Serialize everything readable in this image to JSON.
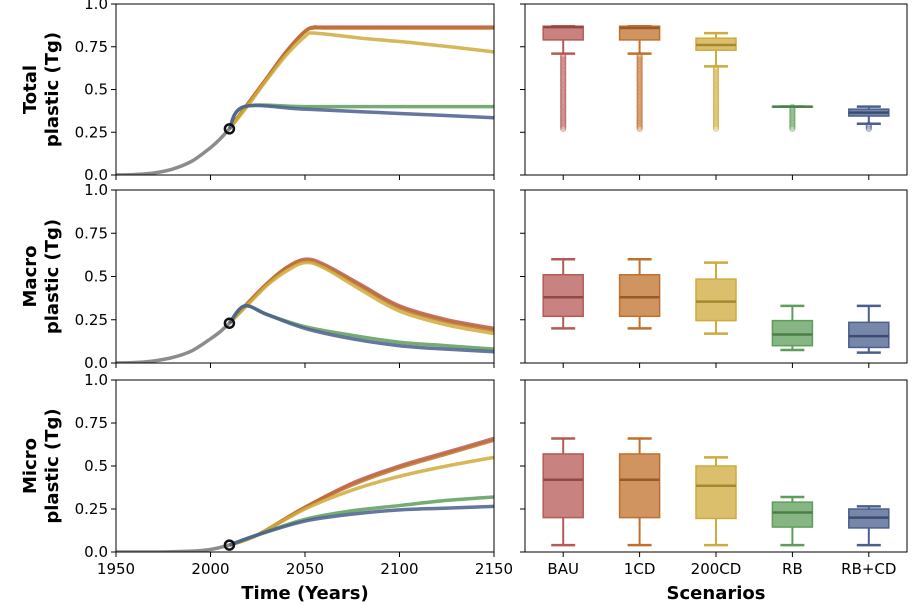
{
  "colors": {
    "historical": "#808080",
    "BAU": "#b65a55",
    "1CD": "#c0702c",
    "200CD": "#cfaa3c",
    "RB": "#5e9e5a",
    "RB+CD": "#4a5f8e"
  },
  "chart_data": [
    {
      "type": "line",
      "row": "total",
      "ylabel_lines": [
        "Total",
        "plastic (Tg)"
      ],
      "xlim": [
        1950,
        2150
      ],
      "ylim": [
        0,
        1.0
      ],
      "xticks": [
        "1950",
        "2000",
        "2050",
        "2100",
        "2150"
      ],
      "yticks": [
        "0.0",
        "0.25",
        "0.5",
        "0.75",
        "1.0"
      ],
      "xlabel": "",
      "marker": {
        "x": 2010,
        "y": 0.27
      },
      "historical": {
        "x": [
          1950,
          1960,
          1970,
          1980,
          1990,
          2000,
          2005,
          2010
        ],
        "y": [
          0.0,
          0.003,
          0.012,
          0.035,
          0.08,
          0.16,
          0.21,
          0.27
        ]
      },
      "series": [
        {
          "key": "BAU",
          "x": [
            2010,
            2020,
            2030,
            2040,
            2050,
            2055,
            2060,
            2100,
            2150
          ],
          "y": [
            0.27,
            0.42,
            0.57,
            0.72,
            0.84,
            0.865,
            0.865,
            0.865,
            0.865
          ]
        },
        {
          "key": "1CD",
          "x": [
            2010,
            2020,
            2030,
            2040,
            2050,
            2055,
            2060,
            2100,
            2150
          ],
          "y": [
            0.27,
            0.42,
            0.57,
            0.72,
            0.84,
            0.86,
            0.86,
            0.86,
            0.86
          ]
        },
        {
          "key": "200CD",
          "x": [
            2010,
            2020,
            2030,
            2040,
            2050,
            2055,
            2080,
            2110,
            2150
          ],
          "y": [
            0.27,
            0.41,
            0.56,
            0.7,
            0.81,
            0.83,
            0.8,
            0.77,
            0.72
          ]
        },
        {
          "key": "RB",
          "x": [
            2010,
            2018,
            2050,
            2100,
            2150
          ],
          "y": [
            0.27,
            0.4,
            0.4,
            0.4,
            0.4
          ]
        },
        {
          "key": "RB+CD",
          "x": [
            2010,
            2018,
            2050,
            2100,
            2150
          ],
          "y": [
            0.27,
            0.4,
            0.385,
            0.36,
            0.335
          ]
        }
      ]
    },
    {
      "type": "line",
      "row": "macro",
      "ylabel_lines": [
        "Macro",
        "plastic (Tg)"
      ],
      "xlim": [
        1950,
        2150
      ],
      "ylim": [
        0,
        1.0
      ],
      "xticks": [
        "1950",
        "2000",
        "2050",
        "2100",
        "2150"
      ],
      "yticks": [
        "0.0",
        "0.25",
        "0.5",
        "0.75",
        "1.0"
      ],
      "xlabel": "",
      "marker": {
        "x": 2010,
        "y": 0.23
      },
      "historical": {
        "x": [
          1950,
          1960,
          1970,
          1980,
          1990,
          2000,
          2005,
          2010
        ],
        "y": [
          0.0,
          0.003,
          0.012,
          0.032,
          0.07,
          0.14,
          0.18,
          0.23
        ]
      },
      "series": [
        {
          "key": "BAU",
          "x": [
            2010,
            2020,
            2030,
            2040,
            2050,
            2060,
            2080,
            2100,
            2125,
            2150
          ],
          "y": [
            0.23,
            0.35,
            0.46,
            0.55,
            0.6,
            0.57,
            0.45,
            0.33,
            0.25,
            0.2
          ]
        },
        {
          "key": "1CD",
          "x": [
            2010,
            2020,
            2030,
            2040,
            2050,
            2060,
            2080,
            2100,
            2125,
            2150
          ],
          "y": [
            0.23,
            0.35,
            0.46,
            0.55,
            0.59,
            0.56,
            0.44,
            0.32,
            0.24,
            0.19
          ]
        },
        {
          "key": "200CD",
          "x": [
            2010,
            2020,
            2030,
            2040,
            2050,
            2060,
            2080,
            2100,
            2125,
            2150
          ],
          "y": [
            0.23,
            0.34,
            0.45,
            0.53,
            0.58,
            0.55,
            0.42,
            0.3,
            0.22,
            0.17
          ]
        },
        {
          "key": "RB",
          "x": [
            2010,
            2018,
            2030,
            2050,
            2075,
            2100,
            2125,
            2150
          ],
          "y": [
            0.23,
            0.33,
            0.28,
            0.21,
            0.16,
            0.12,
            0.1,
            0.08
          ]
        },
        {
          "key": "RB+CD",
          "x": [
            2010,
            2018,
            2030,
            2050,
            2075,
            2100,
            2125,
            2150
          ],
          "y": [
            0.23,
            0.33,
            0.28,
            0.2,
            0.14,
            0.1,
            0.08,
            0.065
          ]
        }
      ]
    },
    {
      "type": "line",
      "row": "micro",
      "ylabel_lines": [
        "Micro",
        "plastic (Tg)"
      ],
      "xlim": [
        1950,
        2150
      ],
      "ylim": [
        0,
        1.0
      ],
      "xticks": [
        "1950",
        "2000",
        "2050",
        "2100",
        "2150"
      ],
      "yticks": [
        "0.0",
        "0.25",
        "0.5",
        "0.75",
        "1.0"
      ],
      "xlabel": "Time (Years)",
      "marker": {
        "x": 2010,
        "y": 0.04
      },
      "historical": {
        "x": [
          1950,
          1970,
          1990,
          2000,
          2010
        ],
        "y": [
          0.0,
          0.0,
          0.005,
          0.015,
          0.04
        ]
      },
      "series": [
        {
          "key": "BAU",
          "x": [
            2010,
            2025,
            2050,
            2075,
            2100,
            2125,
            2150
          ],
          "y": [
            0.04,
            0.1,
            0.26,
            0.4,
            0.5,
            0.58,
            0.66
          ]
        },
        {
          "key": "1CD",
          "x": [
            2010,
            2025,
            2050,
            2075,
            2100,
            2125,
            2150
          ],
          "y": [
            0.04,
            0.1,
            0.26,
            0.39,
            0.49,
            0.57,
            0.65
          ]
        },
        {
          "key": "200CD",
          "x": [
            2010,
            2025,
            2050,
            2075,
            2100,
            2125,
            2150
          ],
          "y": [
            0.04,
            0.1,
            0.25,
            0.36,
            0.44,
            0.5,
            0.55
          ]
        },
        {
          "key": "RB",
          "x": [
            2010,
            2025,
            2050,
            2075,
            2100,
            2125,
            2150
          ],
          "y": [
            0.04,
            0.1,
            0.19,
            0.24,
            0.27,
            0.3,
            0.32
          ]
        },
        {
          "key": "RB+CD",
          "x": [
            2010,
            2025,
            2050,
            2075,
            2100,
            2125,
            2150
          ],
          "y": [
            0.04,
            0.1,
            0.18,
            0.22,
            0.245,
            0.255,
            0.265
          ]
        }
      ]
    },
    {
      "type": "box",
      "row": "total",
      "ylim": [
        0,
        1.0
      ],
      "categories": [],
      "xlabel": "",
      "boxes": [
        {
          "key": "BAU",
          "wlo": 0.71,
          "q1": 0.79,
          "med": 0.865,
          "q3": 0.87,
          "whi": 0.87,
          "outlier_range": [
            0.27,
            0.71
          ]
        },
        {
          "key": "1CD",
          "wlo": 0.71,
          "q1": 0.79,
          "med": 0.86,
          "q3": 0.87,
          "whi": 0.87,
          "outlier_range": [
            0.27,
            0.71
          ]
        },
        {
          "key": "200CD",
          "wlo": 0.635,
          "q1": 0.73,
          "med": 0.76,
          "q3": 0.8,
          "whi": 0.83,
          "outlier_range": [
            0.27,
            0.635
          ]
        },
        {
          "key": "RB",
          "wlo": 0.4,
          "q1": 0.4,
          "med": 0.4,
          "q3": 0.4,
          "whi": 0.4,
          "outlier_range": [
            0.27,
            0.4
          ]
        },
        {
          "key": "RB+CD",
          "wlo": 0.3,
          "q1": 0.345,
          "med": 0.365,
          "q3": 0.385,
          "whi": 0.4,
          "outlier_range": [
            0.27,
            0.3
          ]
        }
      ]
    },
    {
      "type": "box",
      "row": "macro",
      "ylim": [
        0,
        1.0
      ],
      "categories": [],
      "xlabel": "",
      "boxes": [
        {
          "key": "BAU",
          "wlo": 0.2,
          "q1": 0.27,
          "med": 0.38,
          "q3": 0.51,
          "whi": 0.6
        },
        {
          "key": "1CD",
          "wlo": 0.2,
          "q1": 0.27,
          "med": 0.38,
          "q3": 0.51,
          "whi": 0.6
        },
        {
          "key": "200CD",
          "wlo": 0.17,
          "q1": 0.245,
          "med": 0.355,
          "q3": 0.485,
          "whi": 0.58
        },
        {
          "key": "RB",
          "wlo": 0.075,
          "q1": 0.1,
          "med": 0.165,
          "q3": 0.245,
          "whi": 0.33
        },
        {
          "key": "RB+CD",
          "wlo": 0.06,
          "q1": 0.09,
          "med": 0.155,
          "q3": 0.235,
          "whi": 0.33
        }
      ]
    },
    {
      "type": "box",
      "row": "micro",
      "ylim": [
        0,
        1.0
      ],
      "categories": [
        "BAU",
        "1CD",
        "200CD",
        "RB",
        "RB+CD"
      ],
      "xlabel": "Scenarios",
      "boxes": [
        {
          "key": "BAU",
          "wlo": 0.04,
          "q1": 0.2,
          "med": 0.42,
          "q3": 0.57,
          "whi": 0.66
        },
        {
          "key": "1CD",
          "wlo": 0.04,
          "q1": 0.2,
          "med": 0.42,
          "q3": 0.57,
          "whi": 0.66
        },
        {
          "key": "200CD",
          "wlo": 0.04,
          "q1": 0.195,
          "med": 0.385,
          "q3": 0.5,
          "whi": 0.55
        },
        {
          "key": "RB",
          "wlo": 0.04,
          "q1": 0.145,
          "med": 0.23,
          "q3": 0.29,
          "whi": 0.32
        },
        {
          "key": "RB+CD",
          "wlo": 0.04,
          "q1": 0.14,
          "med": 0.2,
          "q3": 0.25,
          "whi": 0.265
        }
      ]
    }
  ]
}
